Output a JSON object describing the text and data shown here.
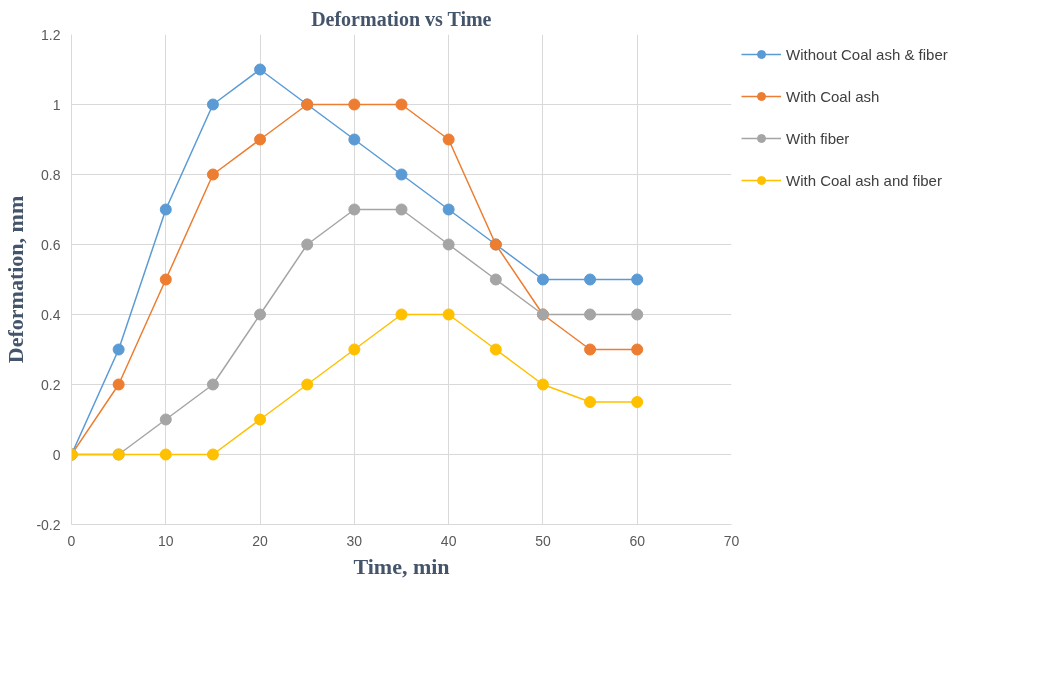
{
  "chart_data": {
    "type": "line",
    "title": "Deformation vs Time",
    "xlabel": "Time, min",
    "ylabel": "Deformation, mm",
    "x": [
      0,
      5,
      10,
      15,
      20,
      25,
      30,
      35,
      40,
      45,
      50,
      55,
      60
    ],
    "series": [
      {
        "name": "Without Coal ash & fiber",
        "color": "#5b9bd5",
        "values": [
          0,
          0.3,
          0.7,
          1,
          1.1,
          1,
          0.9,
          0.8,
          0.7,
          0.6,
          0.5,
          0.5,
          0.5
        ]
      },
      {
        "name": "With Coal ash",
        "color": "#ed7d31",
        "values": [
          0,
          0.2,
          0.5,
          0.8,
          0.9,
          1,
          1,
          1,
          0.9,
          0.6,
          0.4,
          0.3,
          0.3
        ]
      },
      {
        "name": "With fiber",
        "color": "#a5a5a5",
        "values": [
          0,
          0,
          0.1,
          0.2,
          0.4,
          0.6,
          0.7,
          0.7,
          0.6,
          0.5,
          0.4,
          0.4,
          0.4
        ]
      },
      {
        "name": "With Coal ash and fiber",
        "color": "#ffc000",
        "values": [
          0,
          0,
          0,
          0,
          0.1,
          0.2,
          0.3,
          0.4,
          0.4,
          0.3,
          0.2,
          0.15,
          0.15
        ]
      }
    ],
    "xlim": [
      0,
      70
    ],
    "xticks": [
      0,
      10,
      20,
      30,
      40,
      50,
      60,
      70
    ],
    "ylim": [
      -0.2,
      1.2
    ],
    "yticks": [
      -0.2,
      0,
      0.2,
      0.4,
      0.6,
      0.8,
      1,
      1.2
    ],
    "grid": true,
    "legend": "right",
    "marker": "circle",
    "line_style": "solid"
  }
}
